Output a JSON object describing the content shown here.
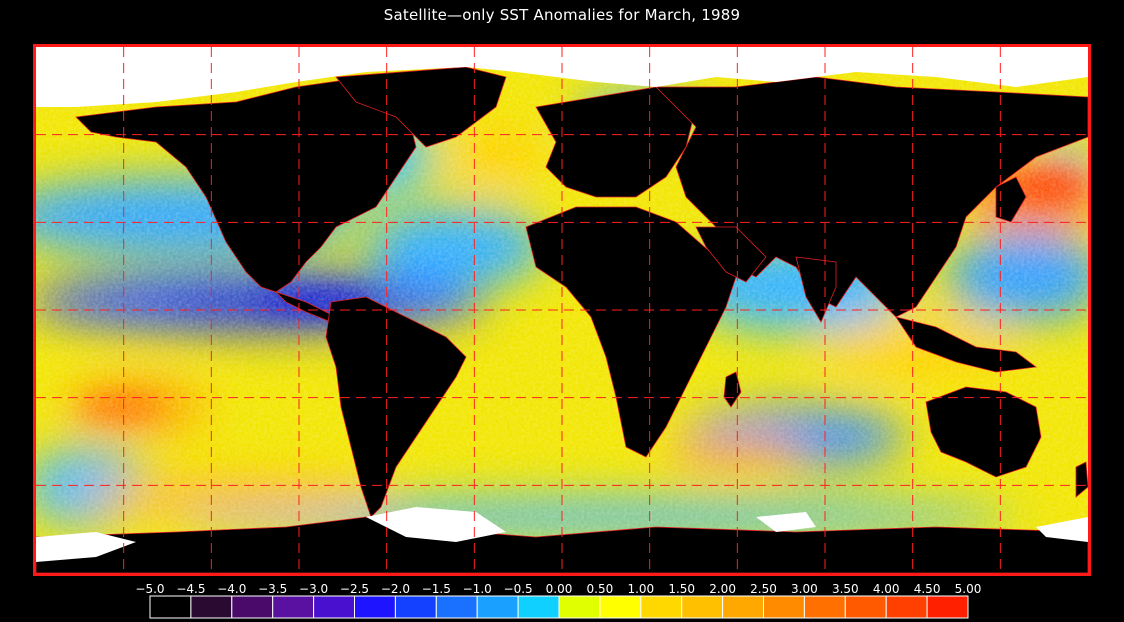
{
  "title": "Satellite—only SST Anomalies for March, 1989",
  "map": {
    "projection": "equirectangular",
    "lon_range": [
      -180,
      180
    ],
    "lat_range": [
      -90,
      90
    ],
    "graticule_spacing_deg": 30,
    "graticule_color": "#ff2020",
    "border_color": "#ff1a1a",
    "land_color": "#000000",
    "ice_color": "#ffffff",
    "regions": [
      {
        "name": "warm-anomaly-north-pacific-west",
        "lon": 155,
        "lat": 38,
        "anomaly": 3.5
      },
      {
        "name": "warm-anomaly-south-pacific",
        "lon": -150,
        "lat": -25,
        "anomaly": 2.5
      },
      {
        "name": "warm-anomaly-south-atlantic",
        "lon": 10,
        "lat": -45,
        "anomaly": 2.5
      },
      {
        "name": "warm-anomaly-south-indian",
        "lon": 90,
        "lat": -35,
        "anomaly": 1.5
      },
      {
        "name": "cold-anomaly-equatorial-pacific",
        "lon": -110,
        "lat": 0,
        "anomaly": -2.5
      },
      {
        "name": "cold-anomaly-north-pacific",
        "lon": -160,
        "lat": 25,
        "anomaly": -1.0
      },
      {
        "name": "cold-anomaly-indian-ocean",
        "lon": 70,
        "lat": 5,
        "anomaly": -1.0
      },
      {
        "name": "cold-anomaly-north-atlantic",
        "lon": -40,
        "lat": 35,
        "anomaly": -0.5
      }
    ]
  },
  "colorbar": {
    "min": -5.0,
    "max": 5.0,
    "step": 0.5,
    "tick_labels": [
      "−5.0",
      "−4.5",
      "−4.0",
      "−3.5",
      "−3.0",
      "−2.5",
      "−2.0",
      "−1.5",
      "−1.0",
      "−0.5",
      "0.00",
      "0.50",
      "1.00",
      "1.50",
      "2.00",
      "2.50",
      "3.00",
      "3.50",
      "4.00",
      "4.50",
      "5.00"
    ],
    "colors": [
      "#000000",
      "#2a0a30",
      "#4a0a6a",
      "#5a10a0",
      "#4a10d0",
      "#1e14ff",
      "#1440ff",
      "#1a70ff",
      "#1aa0ff",
      "#10d0ff",
      "#e0ff00",
      "#ffff00",
      "#ffd800",
      "#ffc000",
      "#ffa800",
      "#ff8c00",
      "#ff7000",
      "#ff5a00",
      "#ff4000",
      "#ff2000"
    ]
  }
}
